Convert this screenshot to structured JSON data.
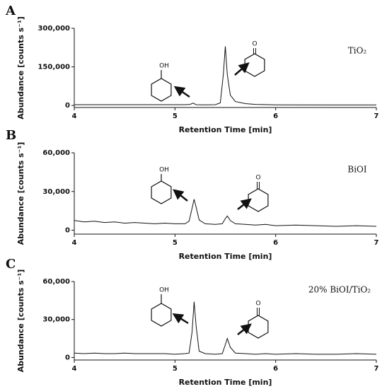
{
  "chart_data": [
    {
      "type": "line",
      "panel": "A",
      "x_label": "Retention Time [min]",
      "y_label": "Abundance [counts s⁻¹]",
      "annotation": "TiO₂",
      "molecule_labels": [
        "OH",
        "O"
      ],
      "color": "#111111",
      "x": [
        4,
        4.5,
        5,
        5.1,
        5.15,
        5.18,
        5.21,
        5.3,
        5.4,
        5.45,
        5.48,
        5.5,
        5.52,
        5.55,
        5.6,
        5.7,
        5.8,
        6,
        6.5,
        7
      ],
      "values": [
        3000,
        3000,
        3000,
        3000,
        4000,
        9000,
        3000,
        2500,
        3000,
        10000,
        120000,
        230000,
        120000,
        40000,
        15000,
        7000,
        4000,
        2500,
        2000,
        2000
      ],
      "xlim": [
        4,
        7
      ],
      "xticks": [
        4,
        5,
        6,
        7
      ],
      "ylim": [
        -8000,
        300000
      ],
      "yticks": [
        0,
        {
          "value": 150000,
          "label": "150,000"
        },
        {
          "value": 300000,
          "label": "300,000"
        }
      ]
    },
    {
      "type": "line",
      "panel": "B",
      "x_label": "Retention Time [min]",
      "y_label": "Abundance [counts s⁻¹]",
      "annotation": "BiOI",
      "molecule_labels": [
        "OH",
        "O"
      ],
      "color": "#111111",
      "x": [
        4,
        4.1,
        4.2,
        4.3,
        4.4,
        4.5,
        4.6,
        4.7,
        4.8,
        4.9,
        5.0,
        5.1,
        5.14,
        5.17,
        5.19,
        5.21,
        5.24,
        5.3,
        5.4,
        5.47,
        5.5,
        5.52,
        5.55,
        5.6,
        5.7,
        5.8,
        5.9,
        6.0,
        6.2,
        6.4,
        6.6,
        6.8,
        7.0
      ],
      "values": [
        7500,
        6500,
        7000,
        6000,
        6500,
        5500,
        6000,
        5500,
        5000,
        5500,
        5000,
        5000,
        7000,
        17000,
        24000,
        18000,
        8000,
        5000,
        4500,
        5000,
        9000,
        11000,
        7500,
        5000,
        4500,
        4000,
        4500,
        3500,
        4000,
        3500,
        3000,
        3500,
        3000
      ],
      "xlim": [
        4,
        7
      ],
      "xticks": [
        4,
        5,
        6,
        7
      ],
      "ylim": [
        -3000,
        60000
      ],
      "yticks": [
        0,
        {
          "value": 30000,
          "label": "30,000"
        },
        {
          "value": 60000,
          "label": "60,000"
        }
      ]
    },
    {
      "type": "line",
      "panel": "C",
      "x_label": "Retention Time [min]",
      "y_label": "Abundance [counts s⁻¹]",
      "annotation": "20% BiOI/TiO₂",
      "molecule_labels": [
        "OH",
        "O"
      ],
      "color": "#111111",
      "x": [
        4,
        4.1,
        4.2,
        4.3,
        4.4,
        4.5,
        4.6,
        4.7,
        4.8,
        4.9,
        5.0,
        5.1,
        5.14,
        5.17,
        5.19,
        5.21,
        5.24,
        5.3,
        5.4,
        5.47,
        5.5,
        5.52,
        5.55,
        5.6,
        5.7,
        5.8,
        5.9,
        6.0,
        6.2,
        6.4,
        6.6,
        6.8,
        7.0
      ],
      "values": [
        3500,
        3000,
        3500,
        3000,
        3000,
        3500,
        3000,
        3000,
        3000,
        3000,
        2500,
        3000,
        3500,
        20000,
        44000,
        25000,
        5000,
        3000,
        2500,
        3000,
        10000,
        15000,
        8000,
        3500,
        3000,
        2500,
        3000,
        2500,
        3000,
        2500,
        2500,
        3000,
        2500
      ],
      "xlim": [
        4,
        7
      ],
      "xticks": [
        4,
        5,
        6,
        7
      ],
      "ylim": [
        -2000,
        60000
      ],
      "yticks": [
        0,
        {
          "value": 30000,
          "label": "30,000"
        },
        {
          "value": 60000,
          "label": "60,000"
        }
      ]
    }
  ]
}
